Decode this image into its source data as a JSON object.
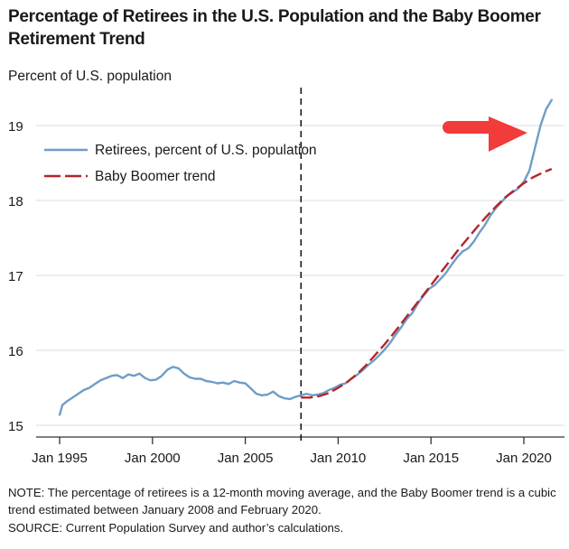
{
  "colors": {
    "retirees": "#6f9dc8",
    "trend": "#b5232a",
    "arrow": "#f23b3b",
    "grid": "#e2e2e2",
    "axis": "#333333",
    "divider": "#111111"
  },
  "chart_data": {
    "type": "line",
    "title": "Percentage of Retirees in the U.S. Population and the Baby Boomer Retirement Trend",
    "ylabel": "Percent of U.S. population",
    "xlabel": "",
    "ylim": [
      14.85,
      19.5
    ],
    "xlim": [
      1994.0,
      2022.3
    ],
    "grid": "horizontal",
    "yticks": [
      15,
      16,
      17,
      18,
      19
    ],
    "xticks": [
      {
        "value": 1995,
        "label": "Jan 1995"
      },
      {
        "value": 2000,
        "label": "Jan 2000"
      },
      {
        "value": 2005,
        "label": "Jan 2005"
      },
      {
        "value": 2010,
        "label": "Jan 2010"
      },
      {
        "value": 2015,
        "label": "Jan 2015"
      },
      {
        "value": 2020,
        "label": "Jan 2020"
      }
    ],
    "vertical_marker": {
      "x": 2008.0,
      "style": "dashed"
    },
    "legend": {
      "placement": "top-left",
      "entries": [
        {
          "name": "Retirees, percent of U.S. population",
          "style": "solid"
        },
        {
          "name": "Baby Boomer trend",
          "style": "dashed"
        }
      ]
    },
    "annotation": {
      "type": "arrow",
      "direction": "right",
      "points_to": "retirees series above trend, 2021"
    },
    "series": [
      {
        "name": "Retirees, percent of U.S. population",
        "x": [
          1995.0,
          1995.15,
          1995.4,
          1995.7,
          1996.0,
          1996.3,
          1996.6,
          1996.9,
          1997.2,
          1997.5,
          1997.8,
          1998.1,
          1998.4,
          1998.7,
          1999.0,
          1999.3,
          1999.6,
          1999.9,
          2000.2,
          2000.5,
          2000.8,
          2001.1,
          2001.4,
          2001.7,
          2002.0,
          2002.3,
          2002.6,
          2002.9,
          2003.2,
          2003.5,
          2003.8,
          2004.1,
          2004.4,
          2004.7,
          2005.0,
          2005.3,
          2005.6,
          2005.9,
          2006.2,
          2006.5,
          2006.8,
          2007.1,
          2007.4,
          2007.7,
          2008.0,
          2008.3,
          2008.6,
          2008.9,
          2009.2,
          2009.5,
          2009.8,
          2010.1,
          2010.4,
          2010.7,
          2011.0,
          2011.3,
          2011.6,
          2011.9,
          2012.2,
          2012.5,
          2012.8,
          2013.1,
          2013.4,
          2013.7,
          2014.0,
          2014.3,
          2014.6,
          2014.9,
          2015.2,
          2015.5,
          2015.8,
          2016.1,
          2016.4,
          2016.7,
          2017.0,
          2017.3,
          2017.6,
          2017.9,
          2018.2,
          2018.5,
          2018.8,
          2019.1,
          2019.4,
          2019.7,
          2020.0,
          2020.3,
          2020.6,
          2020.9,
          2021.2,
          2021.5
        ],
        "y": [
          15.14,
          15.27,
          15.32,
          15.37,
          15.42,
          15.47,
          15.5,
          15.55,
          15.6,
          15.63,
          15.66,
          15.67,
          15.63,
          15.68,
          15.66,
          15.69,
          15.63,
          15.6,
          15.61,
          15.66,
          15.74,
          15.78,
          15.76,
          15.69,
          15.64,
          15.62,
          15.62,
          15.59,
          15.58,
          15.56,
          15.57,
          15.55,
          15.59,
          15.57,
          15.56,
          15.49,
          15.42,
          15.4,
          15.41,
          15.45,
          15.39,
          15.36,
          15.35,
          15.38,
          15.4,
          15.42,
          15.4,
          15.41,
          15.43,
          15.47,
          15.5,
          15.54,
          15.56,
          15.62,
          15.67,
          15.73,
          15.8,
          15.86,
          15.93,
          16.01,
          16.1,
          16.21,
          16.31,
          16.42,
          16.5,
          16.63,
          16.73,
          16.82,
          16.87,
          16.95,
          17.03,
          17.14,
          17.24,
          17.32,
          17.36,
          17.45,
          17.57,
          17.67,
          17.8,
          17.9,
          17.98,
          18.06,
          18.11,
          18.16,
          18.25,
          18.4,
          18.7,
          19.0,
          19.22,
          19.34
        ]
      },
      {
        "name": "Baby Boomer trend",
        "x": [
          2008.0,
          2008.5,
          2009.0,
          2009.5,
          2010.0,
          2010.5,
          2011.0,
          2011.5,
          2012.0,
          2012.5,
          2013.0,
          2013.5,
          2014.0,
          2014.5,
          2015.0,
          2015.5,
          2016.0,
          2016.5,
          2017.0,
          2017.5,
          2018.0,
          2018.5,
          2019.0,
          2019.5,
          2020.0,
          2020.5,
          2021.0,
          2021.5
        ],
        "y": [
          15.37,
          15.37,
          15.39,
          15.43,
          15.5,
          15.58,
          15.68,
          15.8,
          15.94,
          16.08,
          16.23,
          16.39,
          16.55,
          16.71,
          16.87,
          17.03,
          17.19,
          17.35,
          17.5,
          17.65,
          17.79,
          17.92,
          18.04,
          18.14,
          18.23,
          18.31,
          18.37,
          18.42
        ]
      }
    ]
  },
  "footer": {
    "note": "NOTE: The percentage of retirees is a 12-month moving average, and the Baby Boomer trend is a cubic trend estimated between January 2008 and February 2020.",
    "source": "SOURCE: Current Population Survey and author’s calculations."
  }
}
